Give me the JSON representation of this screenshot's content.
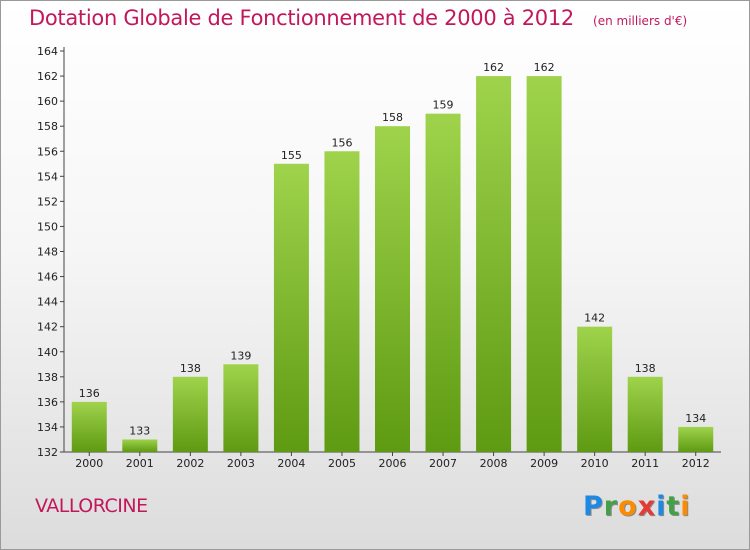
{
  "header": {
    "title": "Dotation Globale de Fonctionnement de 2000 à 2012",
    "unit": "(en milliers d'€)"
  },
  "footer": {
    "commune": "VALLORCINE",
    "brand_letters": [
      "P",
      "r",
      "o",
      "x",
      "i",
      "t",
      "i"
    ],
    "brand_colors": [
      "#1e88e5",
      "#43a047",
      "#fb8c00",
      "#e53935",
      "#1e88e5",
      "#43a047",
      "#fb8c00"
    ]
  },
  "colors": {
    "bar_light": "#9fd34c",
    "bar_dark": "#5e9a12",
    "title": "#c2185b"
  },
  "chart_data": {
    "type": "bar",
    "title": "Dotation Globale de Fonctionnement de 2000 à 2012",
    "subtitle": "(en milliers d'€)",
    "xlabel": "",
    "ylabel": "",
    "categories": [
      "2000",
      "2001",
      "2002",
      "2003",
      "2004",
      "2005",
      "2006",
      "2007",
      "2008",
      "2009",
      "2010",
      "2011",
      "2012"
    ],
    "values": [
      136,
      133,
      138,
      139,
      155,
      156,
      158,
      159,
      162,
      162,
      142,
      138,
      134
    ],
    "ylim": [
      132,
      164
    ],
    "yticks": [
      132,
      134,
      136,
      138,
      140,
      142,
      144,
      146,
      148,
      150,
      152,
      154,
      156,
      158,
      160,
      162,
      164
    ],
    "grid": false,
    "legend": "none"
  }
}
